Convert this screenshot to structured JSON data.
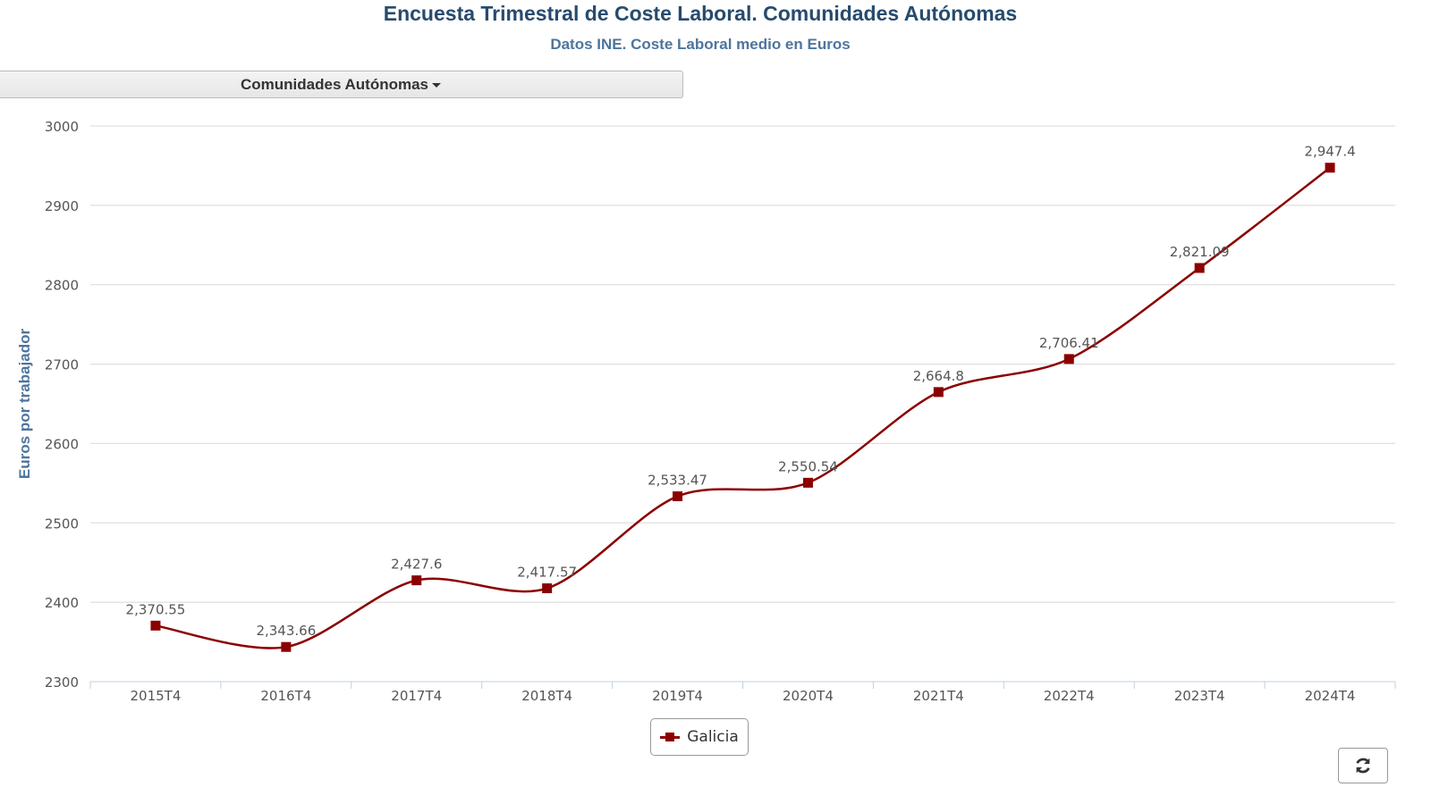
{
  "header": {
    "title": "Encuesta Trimestral de Coste Laboral. Comunidades Autónomas",
    "subtitle": "Datos INE. Coste Laboral medio en Euros"
  },
  "dropdown": {
    "label": "Comunidades Autónomas"
  },
  "controls": {
    "refresh_icon": "refresh-icon"
  },
  "chart_data": {
    "type": "line",
    "ylabel": "Euros por trabajador",
    "xlabel": "",
    "ylim": [
      2300,
      3000
    ],
    "yticks": [
      "2300",
      "2400",
      "2500",
      "2600",
      "2700",
      "2800",
      "2900",
      "3000"
    ],
    "grid": true,
    "legend_placement": "bottom-center",
    "categories": [
      "2015T4",
      "2016T4",
      "2017T4",
      "2018T4",
      "2019T4",
      "2020T4",
      "2021T4",
      "2022T4",
      "2023T4",
      "2024T4"
    ],
    "series": [
      {
        "name": "Galicia",
        "color": "#8b0000",
        "values": [
          2370.55,
          2343.66,
          2427.6,
          2417.57,
          2533.47,
          2550.54,
          2664.8,
          2706.41,
          2821.09,
          2947.4
        ],
        "labels": [
          "2,370.55",
          "2,343.66",
          "2,427.6",
          "2,417.57",
          "2,533.47",
          "2,550.54",
          "2,664.8",
          "2,706.41",
          "2,821.09",
          "2,947.4"
        ]
      }
    ]
  }
}
